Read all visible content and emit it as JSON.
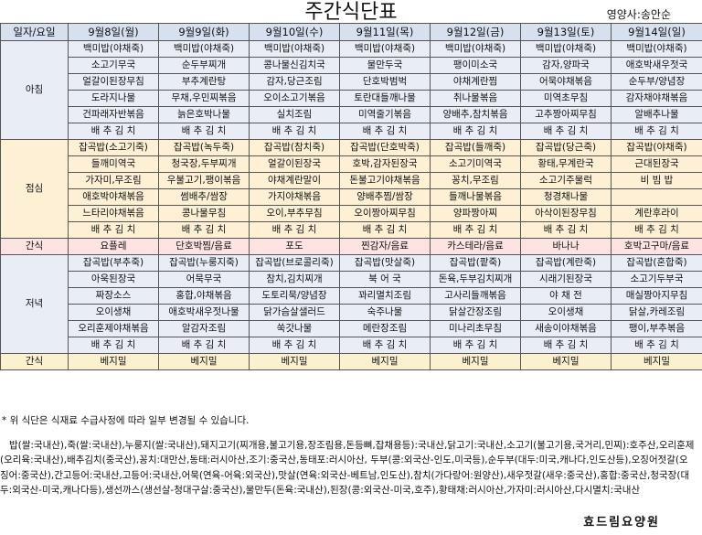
{
  "title": "주간식단표",
  "nutritionist": "영양사:송안순",
  "header": [
    "일자/요일",
    "9월8일(월)",
    "9월9일(화)",
    "9월10일(수)",
    "9월11일(목)",
    "9월12일(금)",
    "9월13일(토)",
    "9월14일(일)"
  ],
  "meals": [
    {
      "label": "아침",
      "rows": [
        [
          "백미밥(야채죽)",
          "백미밥(야채죽)",
          "백미밥(야채죽)",
          "백미밥(야채죽)",
          "백미밥(야채죽)",
          "백미밥(야채죽)",
          "백미밥(야채죽)"
        ],
        [
          "소고기무국",
          "순두부찌개",
          "콩나물신김치국",
          "물만두국",
          "팽이미소국",
          "감자,양파국",
          "애호박새우젓국"
        ],
        [
          "얼갈이된장무침",
          "부추계란탕",
          "감자,당근조림",
          "단호박범벅",
          "야채계란찜",
          "어묵야채볶음",
          "순두부/양념장"
        ],
        [
          "도라지나물",
          "무채,우민찌볶음",
          "오이소고기볶음",
          "토란대들깨나물",
          "취나물볶음",
          "미역초무침",
          "감자채야채볶음"
        ],
        [
          "건파래자반볶음",
          "늙은호박나물",
          "실치조림",
          "미역줄기볶음",
          "양배추,참치볶음",
          "고추짱아찌무침",
          "알배추나물"
        ],
        [
          "배 추 김 치",
          "배 추 김 치",
          "배 추 김 치",
          "배 추 김 치",
          "배 추 김 치",
          "배 추 김 치",
          "배 추 김 치"
        ]
      ]
    },
    {
      "label": "점심",
      "rows": [
        [
          "잡곡밥(소고기죽)",
          "잡곡밥(녹두죽)",
          "잡곡밥(참치죽)",
          "잡곡밥(단호박죽)",
          "잡곡밥(들깨죽)",
          "잡곡밥(당근죽)",
          "잡곡밥(야채죽)"
        ],
        [
          "들깨미역국",
          "청국장,두부찌개",
          "얼갈이된장국",
          "호박,감자된장국",
          "소고기미역국",
          "황태,무계란국",
          "근대된장국"
        ],
        [
          "가자미,무조림",
          "우불고기,팽이볶음",
          "야채계란말이",
          "돈불고기야채볶음",
          "꽁치,무조림",
          "소고기주물럭",
          "비 빔 밥"
        ],
        [
          "애호박야채볶음",
          "썸배추/쌈장",
          "가지야채볶음",
          "양배추찜/쌈장",
          "들깨나물볶음",
          "청경채나물",
          ""
        ],
        [
          "느타리야채볶음",
          "콩나물무침",
          "오이,부추무침",
          "오이짱아찌무침",
          "양파짱아찌",
          "아삭이된장무침",
          "계란후라이"
        ],
        [
          "배 추 김 치",
          "배 추 김 치",
          "배 추 김 치",
          "배 추 김 치",
          "배 추 김 치",
          "배 추 김 치",
          "배 추 김 치"
        ]
      ]
    },
    {
      "label": "간식",
      "rows": [
        [
          "요플레",
          "단호박찜/음료",
          "포도",
          "찐감자/음료",
          "카스테라/음료",
          "바나나",
          "호박고구마/음료"
        ]
      ]
    },
    {
      "label": "저녁",
      "rows": [
        [
          "잡곡밥(부추죽)",
          "잡곡밥(누룽지죽)",
          "잡곡밥(브로콜리죽)",
          "잡곡밥(맛살죽)",
          "잡곡밥(팥죽)",
          "잡곡밥(계란죽)",
          "잡곡밥(혼합죽)"
        ],
        [
          "아욱된장국",
          "어묵무국",
          "참치,김치찌개",
          "북 어 국",
          "돈육,두부김치찌개",
          "시래기된장국",
          "소고기두부국"
        ],
        [
          "짜장소스",
          "홍합,야채볶음",
          "도토리묵/양념장",
          "꽈리멸치조림",
          "고사리들깨볶음",
          "야 채 전",
          "매실짱아지무침"
        ],
        [
          "오이생채",
          "애호박새우젓나물",
          "닭가슴살샐러드",
          "숙주나물",
          "닭살간장조림",
          "오이생채",
          "닭살,카레조림"
        ],
        [
          "오리훈제야채볶음",
          "알감자조림",
          "쑥갓나물",
          "메란장조림",
          "미나리초무침",
          "새송이야채볶음",
          "팽이,부추볶음"
        ],
        [
          "배 추 김 치",
          "배 추 김 치",
          "배 추 김 치",
          "배 추 김 치",
          "배 추 김 치",
          "배 추 김 치",
          "배 추 김 치"
        ]
      ]
    },
    {
      "label": "간식",
      "rows": [
        [
          "베지밀",
          "베지밀",
          "베지밀",
          "베지밀",
          "베지밀",
          "베지밀",
          "베지밀"
        ]
      ]
    }
  ],
  "notes": {
    "line1": "* 위 식단은 식재료 수급사정에 따라 일부 변경될 수 있습니다.",
    "origin": "밥(쌀:국내산),죽(쌀:국내산),누룽지(쌀:국내산),돼지고기(찌개용,불고기용,장조림용,돈등뼈,잡채용등):국내산,닭고기:국내산,소고기(불고기용,국거리,민찌):호주산,오리훈제(오리육:국내산),배추김치(중국산),꽁치:대만산,동태:러시아산,조기:중국산,동태포:러시아산, 두부(콩:외국산-인도,미국등),순두부(대두:미국,캐나다,인도산등),오징어젓갈(오징어:중국산),간고등어:국내산,고등어:국내산,어묵(연육-어육:외국산),맛살(연육:외국산-베트남,인도산),참치(가다랑어:원양산),새우젓갈(새우:중국산),홍합:중국산,청국장(대두:외국산-미국,캐나다등),생선까스(생선살-청대구살:중국산),물만두(돈육:국내산),된장(콩:외국산-미국,호주),황태채:러시아산,가자미:러시아산,다시멸치:국내산"
  },
  "footer": "효드림요양원"
}
